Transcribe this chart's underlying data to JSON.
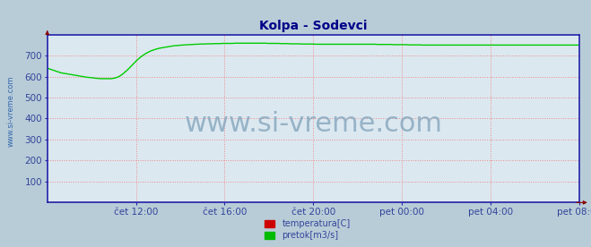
{
  "title": "Kolpa - Sodevci",
  "bg_color": "#dce8f0",
  "outer_bg_color": "#b8ccd8",
  "grid_color": "#ee8888",
  "axis_color": "#2222aa",
  "title_color": "#000088",
  "title_fontsize": 10,
  "tick_color": "#334499",
  "tick_fontsize": 7.5,
  "watermark": "www.si-vreme.com",
  "watermark_color": "#8aaac0",
  "watermark_fontsize": 22,
  "side_label": "www.si-vreme.com",
  "side_label_color": "#3366aa",
  "side_label_fontsize": 6,
  "ylim": [
    0,
    800
  ],
  "yticks": [
    100,
    200,
    300,
    400,
    500,
    600,
    700
  ],
  "xtick_labels": [
    "čet 12:00",
    "čet 16:00",
    "čet 20:00",
    "pet 00:00",
    "pet 04:00",
    "pet 08:00"
  ],
  "xtick_positions": [
    72,
    144,
    216,
    288,
    360,
    432
  ],
  "total_points": 432,
  "legend_labels": [
    "temperatura[C]",
    "pretok[m3/s]"
  ],
  "legend_colors": [
    "#cc0000",
    "#00bb00"
  ],
  "line_color_pretok": "#00cc00",
  "line_color_temp": "#cc0000",
  "line_width": 1.0,
  "pretok_y": [
    640,
    638,
    636,
    634,
    632,
    630,
    628,
    626,
    624,
    622,
    620,
    618,
    617,
    616,
    615,
    614,
    613,
    612,
    611,
    610,
    609,
    608,
    607,
    606,
    605,
    604,
    603,
    602,
    601,
    600,
    599,
    598,
    597,
    596,
    596,
    595,
    595,
    594,
    593,
    592,
    592,
    591,
    591,
    590,
    590,
    590,
    590,
    590,
    590,
    590,
    590,
    590,
    590,
    591,
    592,
    593,
    595,
    597,
    600,
    603,
    607,
    611,
    616,
    621,
    626,
    631,
    637,
    643,
    649,
    655,
    661,
    667,
    673,
    679,
    684,
    689,
    694,
    698,
    702,
    706,
    710,
    713,
    716,
    719,
    722,
    724,
    726,
    728,
    730,
    732,
    733,
    735,
    736,
    737,
    738,
    739,
    740,
    741,
    742,
    743,
    744,
    745,
    746,
    747,
    747,
    748,
    748,
    749,
    749,
    750,
    750,
    751,
    751,
    751,
    752,
    752,
    752,
    753,
    753,
    753,
    754,
    754,
    754,
    754,
    755,
    755,
    755,
    755,
    755,
    756,
    756,
    756,
    756,
    756,
    756,
    757,
    757,
    757,
    757,
    757,
    757,
    757,
    758,
    758,
    758,
    758,
    758,
    758,
    758,
    758,
    758,
    758,
    759,
    759,
    759,
    759,
    759,
    759,
    759,
    759,
    759,
    759,
    759,
    759,
    759,
    759,
    759,
    759,
    759,
    759,
    759,
    759,
    759,
    759,
    759,
    759,
    759,
    759,
    759,
    758,
    758,
    758,
    758,
    758,
    758,
    758,
    758,
    758,
    758,
    757,
    757,
    757,
    757,
    757,
    757,
    757,
    757,
    756,
    756,
    756,
    756,
    756,
    756,
    756,
    756,
    756,
    755,
    755,
    755,
    755,
    755,
    755,
    755,
    755,
    755,
    755,
    755,
    755,
    754,
    754,
    754,
    754,
    754,
    754,
    754,
    754,
    754,
    754,
    754,
    754,
    754,
    754,
    754,
    754,
    754,
    754,
    754,
    754,
    754,
    754,
    754,
    754,
    754,
    754,
    754,
    754,
    754,
    754,
    754,
    754,
    754,
    754,
    754,
    754,
    754,
    754,
    754,
    754,
    754,
    754,
    754,
    754,
    754,
    754,
    754,
    754,
    754,
    754,
    753,
    753,
    753,
    753,
    753,
    753,
    753,
    753,
    753,
    753,
    753,
    753,
    753,
    752,
    752,
    752,
    752,
    752,
    752,
    752,
    752,
    752,
    752,
    752,
    752,
    751,
    751,
    751,
    751,
    751,
    751,
    751,
    751,
    751,
    751,
    751,
    750,
    750,
    750,
    750,
    750,
    750,
    750,
    750,
    750,
    750,
    750,
    750,
    750,
    750,
    750,
    750,
    750,
    750,
    750,
    750,
    750,
    750,
    750,
    750,
    750,
    750,
    750,
    750,
    750,
    750,
    750,
    750,
    750,
    750,
    750,
    750,
    750,
    750,
    750,
    750,
    750,
    750,
    750,
    750,
    750,
    750,
    750,
    750,
    750,
    750,
    750,
    750,
    750,
    750,
    750,
    750,
    750,
    750,
    750,
    750,
    750,
    750,
    750,
    750,
    750,
    750,
    750,
    750,
    750,
    750,
    750,
    750,
    750,
    750,
    750,
    750,
    750,
    750,
    750,
    750,
    750,
    750,
    750,
    750,
    750,
    750,
    750,
    750,
    750,
    750,
    750,
    750,
    750,
    750,
    750,
    750,
    750,
    750,
    750,
    750,
    750,
    750,
    750,
    750,
    750,
    750,
    750,
    750,
    750,
    750,
    750,
    750,
    750,
    750,
    750,
    750,
    750,
    750,
    750,
    750,
    750,
    750,
    750,
    750,
    750,
    750,
    750,
    750
  ]
}
